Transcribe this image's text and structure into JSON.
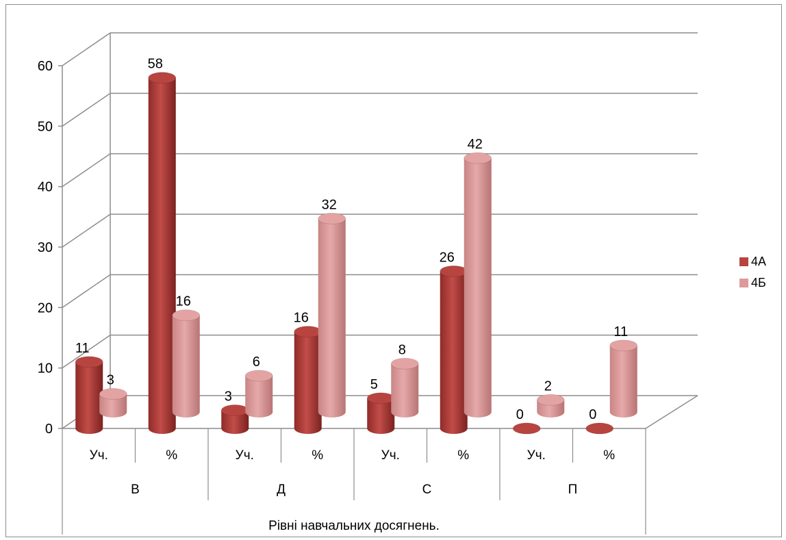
{
  "chart_data": {
    "type": "bar",
    "style": "3d-cylinder",
    "xlabel": "Рівні навчальних досягнень.",
    "ylabel": "",
    "ylim": [
      0,
      60
    ],
    "yticks": [
      0,
      10,
      20,
      30,
      40,
      50,
      60
    ],
    "grid": true,
    "legend_position": "right",
    "groups": [
      "В",
      "Д",
      "С",
      "П"
    ],
    "subcategories": [
      "Уч.",
      "%"
    ],
    "series": [
      {
        "name": "4А",
        "color": "#b84440",
        "values": [
          11,
          58,
          3,
          16,
          5,
          26,
          0,
          0
        ]
      },
      {
        "name": "4Б",
        "color": "#de9a9a",
        "values": [
          3,
          16,
          6,
          32,
          8,
          42,
          2,
          11
        ]
      }
    ]
  }
}
